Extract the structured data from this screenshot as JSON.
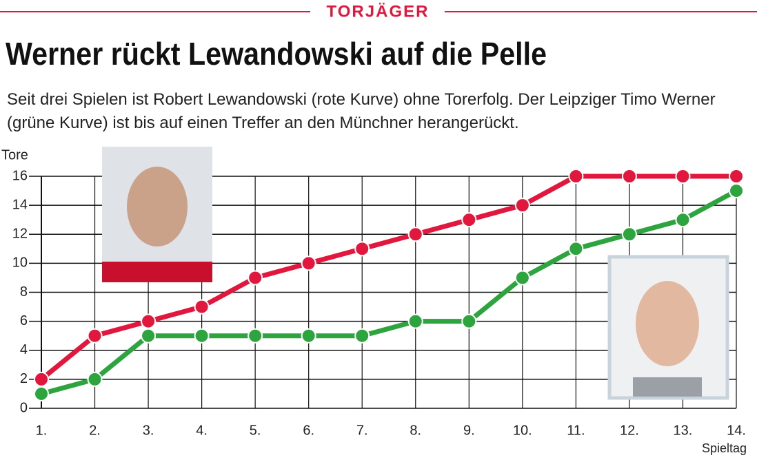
{
  "header": "TORJÄGER",
  "chart_data": {
    "type": "line",
    "title": "Werner rückt Lewandowski auf die Pelle",
    "subtitle": "Seit drei Spielen ist Robert Lewandowski (rote Kurve) ohne Torerfolg. Der Leipziger Timo Werner (grüne Kurve) ist bis auf einen Treffer an den Münchner herangerückt.",
    "y_label": "Tore",
    "x_label": "Spieltag",
    "categories": [
      "1.",
      "2.",
      "3.",
      "4.",
      "5.",
      "6.",
      "7.",
      "8.",
      "9.",
      "10.",
      "11.",
      "12.",
      "13.",
      "14."
    ],
    "series": [
      {
        "color": "#e2173d",
        "values": [
          2,
          5,
          6,
          7,
          9,
          10,
          11,
          12,
          13,
          14,
          16,
          16,
          16,
          16
        ]
      },
      {
        "color": "#2ea43f",
        "values": [
          1,
          2,
          5,
          5,
          5,
          5,
          5,
          6,
          6,
          9,
          11,
          12,
          13,
          15
        ]
      }
    ],
    "ylim": [
      0,
      16
    ],
    "yticks": [
      0,
      2,
      4,
      6,
      8,
      10,
      12,
      14,
      16
    ],
    "grid": true
  }
}
